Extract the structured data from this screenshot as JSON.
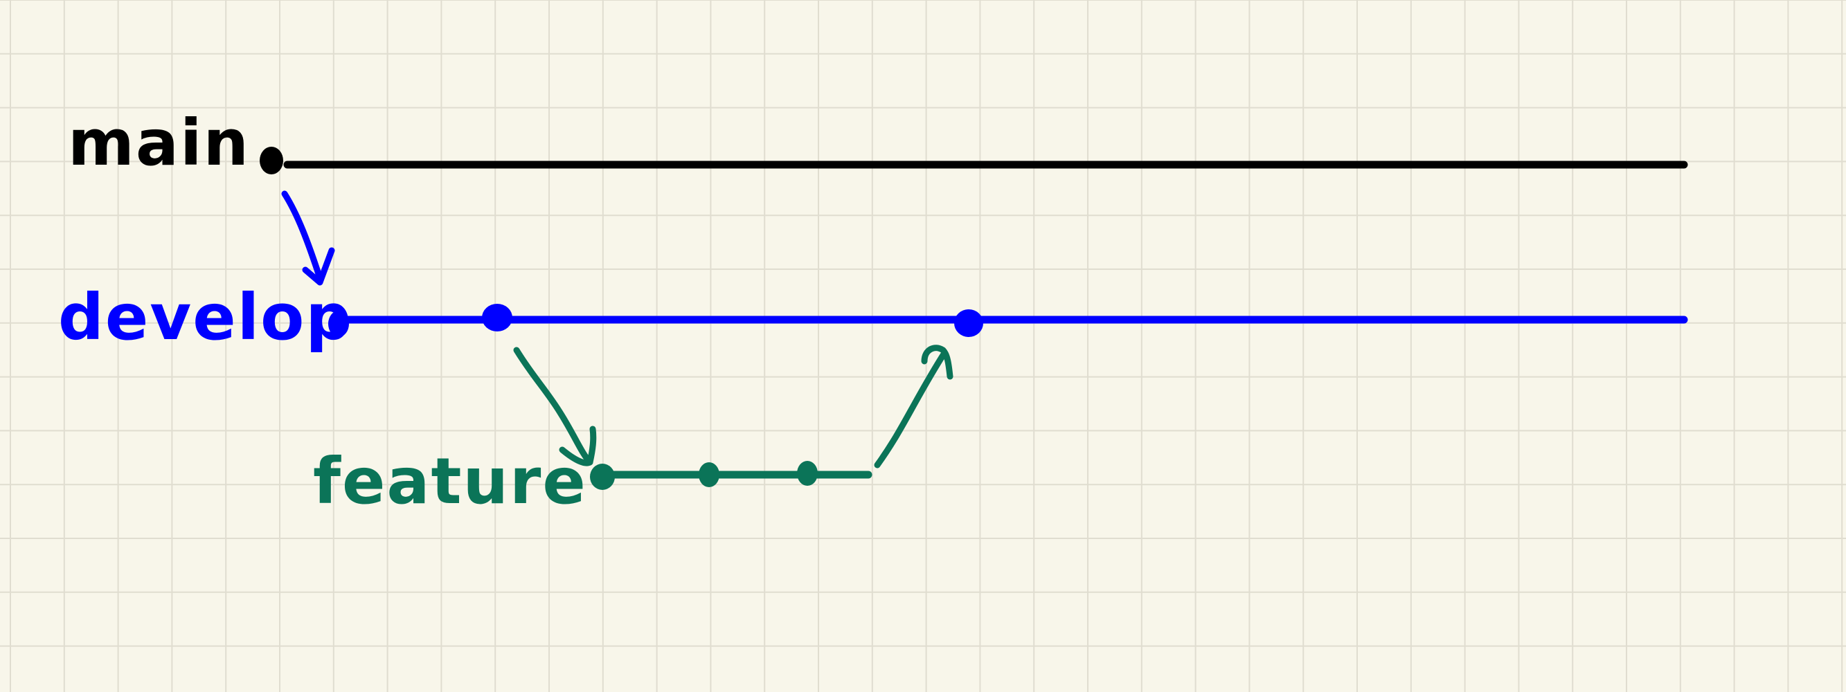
{
  "background_color": "#f8f6ea",
  "grid_color": "#e0ddd0",
  "branches": {
    "main": {
      "label": "main",
      "color": "#000000"
    },
    "develop": {
      "label": "develop",
      "color": "#0000ff"
    },
    "feature": {
      "label": "feature",
      "color": "#0b7458"
    }
  }
}
